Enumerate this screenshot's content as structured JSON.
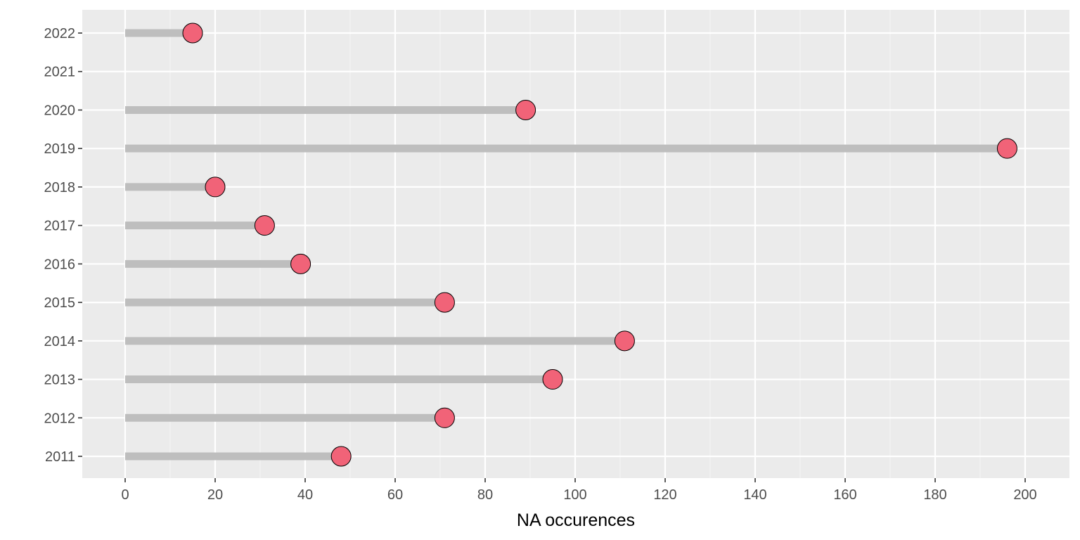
{
  "chart_data": {
    "type": "lollipop",
    "title": "",
    "xlabel": "NA occurences",
    "ylabel": "",
    "xlim": [
      -9.5,
      209.5
    ],
    "x_major_ticks": [
      0,
      20,
      40,
      60,
      80,
      100,
      120,
      140,
      160,
      180,
      200
    ],
    "x_minor_ticks": [
      10,
      30,
      50,
      70,
      90,
      110,
      130,
      150,
      170,
      190
    ],
    "grid": true,
    "categories": [
      "2011",
      "2012",
      "2013",
      "2014",
      "2015",
      "2016",
      "2017",
      "2018",
      "2019",
      "2020",
      "2021",
      "2022"
    ],
    "values": [
      48,
      71,
      95,
      111,
      71,
      39,
      31,
      20,
      196,
      89,
      null,
      15
    ],
    "colors": {
      "panel": "#ebebeb",
      "segment": "#bebebe",
      "point": "#f16378",
      "point_outline": "#000000"
    }
  }
}
